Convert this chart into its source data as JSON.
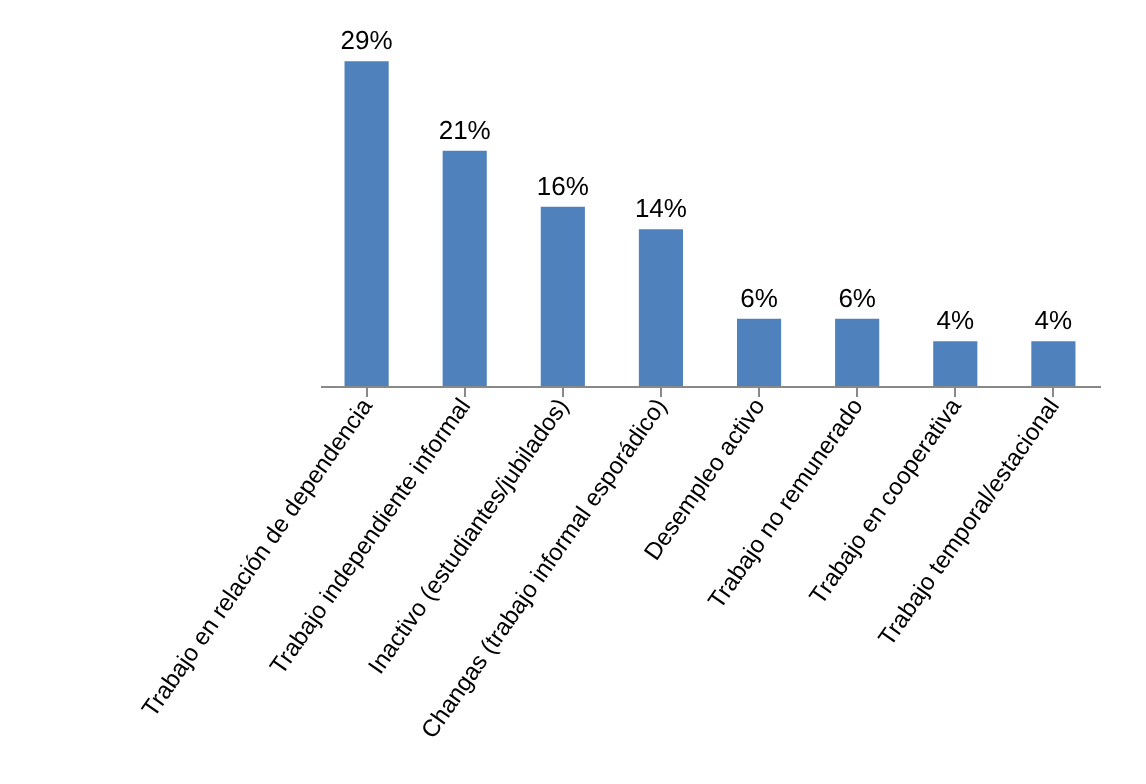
{
  "chart_data": {
    "type": "bar",
    "categories": [
      "Trabajo en relación de dependencia",
      "Trabajo independiente informal",
      "Inactivo (estudiantes/jubilados)",
      "Changas (trabajo informal esporádico)",
      "Desempleo activo",
      "Trabajo no remunerado",
      "Trabajo en cooperativa",
      "Trabajo temporal/estacional"
    ],
    "values": [
      29,
      21,
      16,
      14,
      6,
      6,
      4,
      4
    ],
    "value_labels": [
      "29%",
      "21%",
      "16%",
      "14%",
      "6%",
      "6%",
      "4%",
      "4%"
    ],
    "color": "#4f81bd",
    "grid": false
  }
}
